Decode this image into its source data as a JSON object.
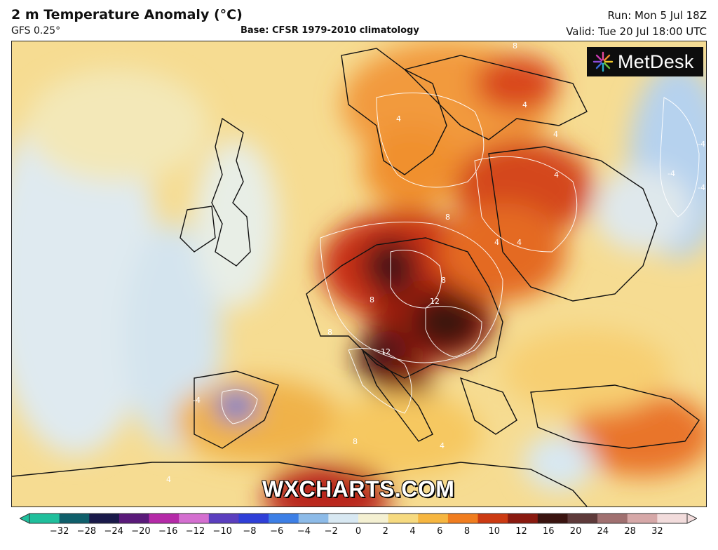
{
  "header": {
    "title": "2 m Temperature Anomaly (°C)",
    "model": "GFS 0.25°",
    "base": "Base: CFSR 1979-2010 climatology",
    "run": "Run: Mon 5 Jul 18Z",
    "valid": "Valid: Tue 20 Jul 18:00 UTC"
  },
  "logo": {
    "text": "MetDesk",
    "icon": "metdesk-starburst-icon"
  },
  "watermark": "WXCHARTS.COM",
  "map": {
    "contour_labels": [
      "4",
      "4",
      "8",
      "4",
      "4",
      "-4",
      "-4",
      "-4",
      "4",
      "8",
      "8",
      "12",
      "8",
      "12",
      "4",
      "-4",
      "8",
      "4",
      "4",
      "8"
    ]
  },
  "colorbar": {
    "ticks": [
      "−32",
      "−28",
      "−24",
      "−20",
      "−16",
      "−12",
      "−10",
      "−8",
      "−6",
      "−4",
      "−2",
      "0",
      "2",
      "4",
      "6",
      "8",
      "10",
      "12",
      "16",
      "20",
      "24",
      "28",
      "32"
    ],
    "colors": [
      "#1fbf9c",
      "#0f5f6b",
      "#1a1a4a",
      "#5a1a7a",
      "#b52aa8",
      "#d46fd0",
      "#5b3fbf",
      "#2f3fd8",
      "#3d7fe6",
      "#8dbbe8",
      "#d8e8f2",
      "#f4f0d2",
      "#f6da80",
      "#f6b640",
      "#f07d1f",
      "#cc3a12",
      "#8a1a10",
      "#3a1410",
      "#5e3a3a",
      "#a07070",
      "#d6a8a8",
      "#f2dcdc"
    ]
  }
}
